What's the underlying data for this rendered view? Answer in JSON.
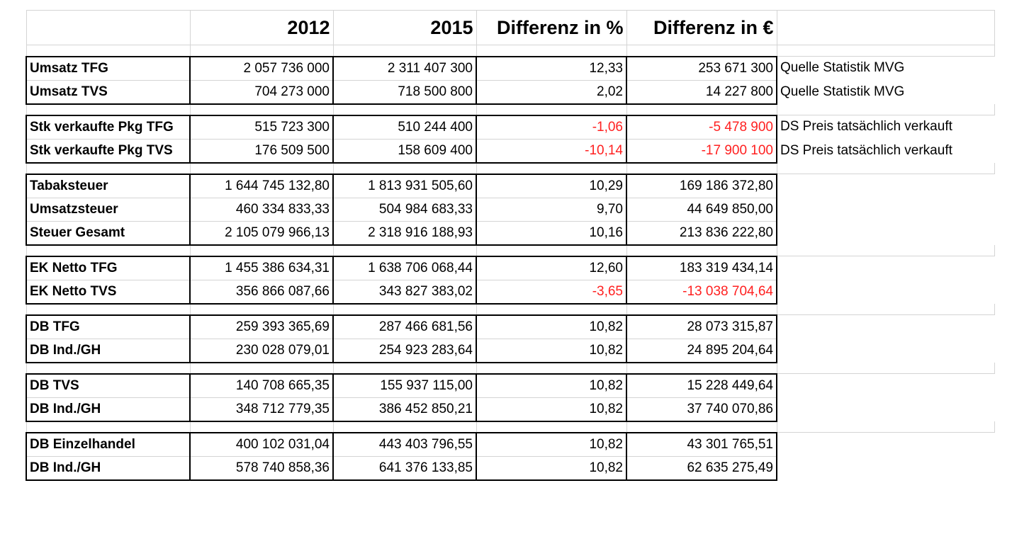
{
  "header": [
    "",
    "2012",
    "2015",
    "Differenz in %",
    "Differenz in €"
  ],
  "blocks": [
    [
      {
        "label": "Umsatz TFG",
        "v2012": "2 057 736 000",
        "v2015": "2 311 407 300",
        "diff_pct": "12,33",
        "diff_eur": "253 671 300",
        "note": "Quelle Statistik MVG",
        "negative": false
      },
      {
        "label": "Umsatz TVS",
        "v2012": "704 273 000",
        "v2015": "718 500 800",
        "diff_pct": "2,02",
        "diff_eur": "14 227 800",
        "note": "Quelle Statistik MVG",
        "negative": false
      }
    ],
    [
      {
        "label": "Stk verkaufte Pkg TFG",
        "v2012": "515 723 300",
        "v2015": "510 244 400",
        "diff_pct": "-1,06",
        "diff_eur": "-5 478 900",
        "note": "DS Preis tatsächlich verkauft",
        "negative": true
      },
      {
        "label": "Stk verkaufte Pkg TVS",
        "v2012": "176 509 500",
        "v2015": "158 609 400",
        "diff_pct": "-10,14",
        "diff_eur": "-17 900 100",
        "note": "DS Preis tatsächlich verkauft",
        "negative": true
      }
    ],
    [
      {
        "label": "Tabaksteuer",
        "v2012": "1 644 745 132,80",
        "v2015": "1 813 931 505,60",
        "diff_pct": "10,29",
        "diff_eur": "169 186 372,80",
        "note": "",
        "negative": false
      },
      {
        "label": "Umsatzsteuer",
        "v2012": "460 334 833,33",
        "v2015": "504 984 683,33",
        "diff_pct": "9,70",
        "diff_eur": "44 649 850,00",
        "note": "",
        "negative": false
      },
      {
        "label": "Steuer Gesamt",
        "v2012": "2 105 079 966,13",
        "v2015": "2 318 916 188,93",
        "diff_pct": "10,16",
        "diff_eur": "213 836 222,80",
        "note": "",
        "negative": false
      }
    ],
    [
      {
        "label": "EK Netto TFG",
        "v2012": "1 455 386 634,31",
        "v2015": "1 638 706 068,44",
        "diff_pct": "12,60",
        "diff_eur": "183 319 434,14",
        "note": "",
        "negative": false
      },
      {
        "label": "EK Netto TVS",
        "v2012": "356 866 087,66",
        "v2015": "343 827 383,02",
        "diff_pct": "-3,65",
        "diff_eur": "-13 038 704,64",
        "note": "",
        "negative": true
      }
    ],
    [
      {
        "label": "DB TFG",
        "v2012": "259 393 365,69",
        "v2015": "287 466 681,56",
        "diff_pct": "10,82",
        "diff_eur": "28 073 315,87",
        "note": "",
        "negative": false
      },
      {
        "label": "DB Ind./GH",
        "v2012": "230 028 079,01",
        "v2015": "254 923 283,64",
        "diff_pct": "10,82",
        "diff_eur": "24 895 204,64",
        "note": "",
        "negative": false
      }
    ],
    [
      {
        "label": "DB TVS",
        "v2012": "140 708 665,35",
        "v2015": "155 937 115,00",
        "diff_pct": "10,82",
        "diff_eur": "15 228 449,64",
        "note": "",
        "negative": false
      },
      {
        "label": "DB Ind./GH",
        "v2012": "348 712 779,35",
        "v2015": "386 452 850,21",
        "diff_pct": "10,82",
        "diff_eur": "37 740 070,86",
        "note": "",
        "negative": false
      }
    ],
    [
      {
        "label": "DB Einzelhandel",
        "v2012": "400 102 031,04",
        "v2015": "443 403 796,55",
        "diff_pct": "10,82",
        "diff_eur": "43 301 765,51",
        "note": "",
        "negative": false
      },
      {
        "label": "DB Ind./GH",
        "v2012": "578 740 858,36",
        "v2015": "641 376 133,85",
        "diff_pct": "10,82",
        "diff_eur": "62 635 275,49",
        "note": "",
        "negative": false
      }
    ]
  ],
  "colors": {
    "negative": "#ff2020",
    "grid": "#d4d4d4",
    "block_border": "#000000"
  }
}
